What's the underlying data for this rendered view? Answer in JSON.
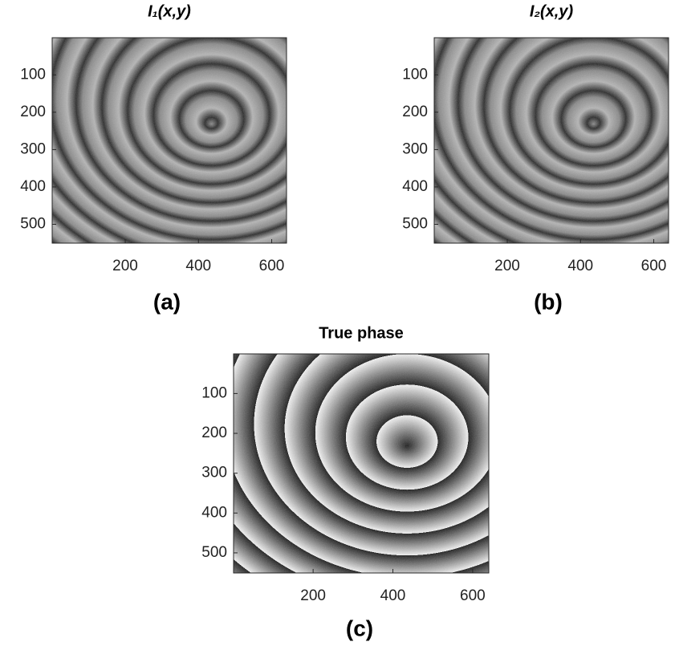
{
  "chart_data": [
    {
      "type": "image",
      "title": "I₁(x,y)",
      "caption": "(a)",
      "colormap": "gray",
      "y_reversed": true,
      "xlim": [
        0.5,
        640.5
      ],
      "ylim": [
        0.5,
        550.5
      ],
      "xticks": [
        200,
        400,
        600
      ],
      "yticks": [
        100,
        200,
        300,
        400,
        500
      ]
    },
    {
      "type": "image",
      "title": "I₂(x,y)",
      "caption": "(b)",
      "colormap": "gray",
      "y_reversed": true,
      "xlim": [
        0.5,
        640.5
      ],
      "ylim": [
        0.5,
        550.5
      ],
      "xticks": [
        200,
        400,
        600
      ],
      "yticks": [
        100,
        200,
        300,
        400,
        500
      ]
    },
    {
      "type": "phase",
      "title": "True phase",
      "caption": "(c)",
      "colormap": "gray",
      "y_reversed": true,
      "xlim": [
        0.5,
        640.5
      ],
      "ylim": [
        0.5,
        550.5
      ],
      "xticks": [
        200,
        400,
        600
      ],
      "yticks": [
        100,
        200,
        300,
        400,
        500
      ]
    }
  ]
}
